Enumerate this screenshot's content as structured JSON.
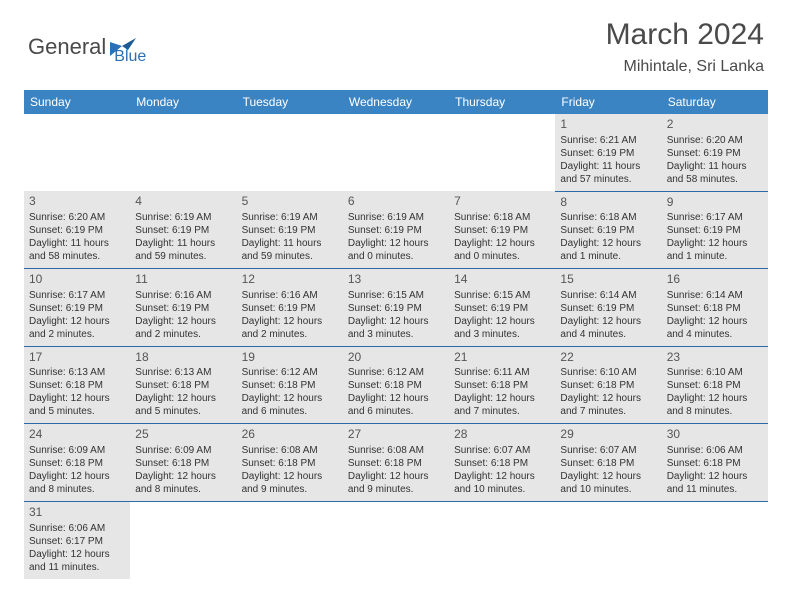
{
  "logo": {
    "general": "General",
    "blue": "Blue"
  },
  "title": "March 2024",
  "location": "Mihintale, Sri Lanka",
  "colors": {
    "header_bg": "#3b84c4",
    "header_text": "#ffffff",
    "cell_bg": "#e6e6e6",
    "row_border": "#2a6aa8",
    "logo_gray": "#4a4a4a",
    "logo_blue": "#2a70b8"
  },
  "weekdays": [
    "Sunday",
    "Monday",
    "Tuesday",
    "Wednesday",
    "Thursday",
    "Friday",
    "Saturday"
  ],
  "weeks": [
    [
      null,
      null,
      null,
      null,
      null,
      {
        "n": "1",
        "r": "Sunrise: 6:21 AM",
        "s": "Sunset: 6:19 PM",
        "d1": "Daylight: 11 hours",
        "d2": "and 57 minutes."
      },
      {
        "n": "2",
        "r": "Sunrise: 6:20 AM",
        "s": "Sunset: 6:19 PM",
        "d1": "Daylight: 11 hours",
        "d2": "and 58 minutes."
      }
    ],
    [
      {
        "n": "3",
        "r": "Sunrise: 6:20 AM",
        "s": "Sunset: 6:19 PM",
        "d1": "Daylight: 11 hours",
        "d2": "and 58 minutes."
      },
      {
        "n": "4",
        "r": "Sunrise: 6:19 AM",
        "s": "Sunset: 6:19 PM",
        "d1": "Daylight: 11 hours",
        "d2": "and 59 minutes."
      },
      {
        "n": "5",
        "r": "Sunrise: 6:19 AM",
        "s": "Sunset: 6:19 PM",
        "d1": "Daylight: 11 hours",
        "d2": "and 59 minutes."
      },
      {
        "n": "6",
        "r": "Sunrise: 6:19 AM",
        "s": "Sunset: 6:19 PM",
        "d1": "Daylight: 12 hours",
        "d2": "and 0 minutes."
      },
      {
        "n": "7",
        "r": "Sunrise: 6:18 AM",
        "s": "Sunset: 6:19 PM",
        "d1": "Daylight: 12 hours",
        "d2": "and 0 minutes."
      },
      {
        "n": "8",
        "r": "Sunrise: 6:18 AM",
        "s": "Sunset: 6:19 PM",
        "d1": "Daylight: 12 hours",
        "d2": "and 1 minute."
      },
      {
        "n": "9",
        "r": "Sunrise: 6:17 AM",
        "s": "Sunset: 6:19 PM",
        "d1": "Daylight: 12 hours",
        "d2": "and 1 minute."
      }
    ],
    [
      {
        "n": "10",
        "r": "Sunrise: 6:17 AM",
        "s": "Sunset: 6:19 PM",
        "d1": "Daylight: 12 hours",
        "d2": "and 2 minutes."
      },
      {
        "n": "11",
        "r": "Sunrise: 6:16 AM",
        "s": "Sunset: 6:19 PM",
        "d1": "Daylight: 12 hours",
        "d2": "and 2 minutes."
      },
      {
        "n": "12",
        "r": "Sunrise: 6:16 AM",
        "s": "Sunset: 6:19 PM",
        "d1": "Daylight: 12 hours",
        "d2": "and 2 minutes."
      },
      {
        "n": "13",
        "r": "Sunrise: 6:15 AM",
        "s": "Sunset: 6:19 PM",
        "d1": "Daylight: 12 hours",
        "d2": "and 3 minutes."
      },
      {
        "n": "14",
        "r": "Sunrise: 6:15 AM",
        "s": "Sunset: 6:19 PM",
        "d1": "Daylight: 12 hours",
        "d2": "and 3 minutes."
      },
      {
        "n": "15",
        "r": "Sunrise: 6:14 AM",
        "s": "Sunset: 6:19 PM",
        "d1": "Daylight: 12 hours",
        "d2": "and 4 minutes."
      },
      {
        "n": "16",
        "r": "Sunrise: 6:14 AM",
        "s": "Sunset: 6:18 PM",
        "d1": "Daylight: 12 hours",
        "d2": "and 4 minutes."
      }
    ],
    [
      {
        "n": "17",
        "r": "Sunrise: 6:13 AM",
        "s": "Sunset: 6:18 PM",
        "d1": "Daylight: 12 hours",
        "d2": "and 5 minutes."
      },
      {
        "n": "18",
        "r": "Sunrise: 6:13 AM",
        "s": "Sunset: 6:18 PM",
        "d1": "Daylight: 12 hours",
        "d2": "and 5 minutes."
      },
      {
        "n": "19",
        "r": "Sunrise: 6:12 AM",
        "s": "Sunset: 6:18 PM",
        "d1": "Daylight: 12 hours",
        "d2": "and 6 minutes."
      },
      {
        "n": "20",
        "r": "Sunrise: 6:12 AM",
        "s": "Sunset: 6:18 PM",
        "d1": "Daylight: 12 hours",
        "d2": "and 6 minutes."
      },
      {
        "n": "21",
        "r": "Sunrise: 6:11 AM",
        "s": "Sunset: 6:18 PM",
        "d1": "Daylight: 12 hours",
        "d2": "and 7 minutes."
      },
      {
        "n": "22",
        "r": "Sunrise: 6:10 AM",
        "s": "Sunset: 6:18 PM",
        "d1": "Daylight: 12 hours",
        "d2": "and 7 minutes."
      },
      {
        "n": "23",
        "r": "Sunrise: 6:10 AM",
        "s": "Sunset: 6:18 PM",
        "d1": "Daylight: 12 hours",
        "d2": "and 8 minutes."
      }
    ],
    [
      {
        "n": "24",
        "r": "Sunrise: 6:09 AM",
        "s": "Sunset: 6:18 PM",
        "d1": "Daylight: 12 hours",
        "d2": "and 8 minutes."
      },
      {
        "n": "25",
        "r": "Sunrise: 6:09 AM",
        "s": "Sunset: 6:18 PM",
        "d1": "Daylight: 12 hours",
        "d2": "and 8 minutes."
      },
      {
        "n": "26",
        "r": "Sunrise: 6:08 AM",
        "s": "Sunset: 6:18 PM",
        "d1": "Daylight: 12 hours",
        "d2": "and 9 minutes."
      },
      {
        "n": "27",
        "r": "Sunrise: 6:08 AM",
        "s": "Sunset: 6:18 PM",
        "d1": "Daylight: 12 hours",
        "d2": "and 9 minutes."
      },
      {
        "n": "28",
        "r": "Sunrise: 6:07 AM",
        "s": "Sunset: 6:18 PM",
        "d1": "Daylight: 12 hours",
        "d2": "and 10 minutes."
      },
      {
        "n": "29",
        "r": "Sunrise: 6:07 AM",
        "s": "Sunset: 6:18 PM",
        "d1": "Daylight: 12 hours",
        "d2": "and 10 minutes."
      },
      {
        "n": "30",
        "r": "Sunrise: 6:06 AM",
        "s": "Sunset: 6:18 PM",
        "d1": "Daylight: 12 hours",
        "d2": "and 11 minutes."
      }
    ],
    [
      {
        "n": "31",
        "r": "Sunrise: 6:06 AM",
        "s": "Sunset: 6:17 PM",
        "d1": "Daylight: 12 hours",
        "d2": "and 11 minutes."
      },
      null,
      null,
      null,
      null,
      null,
      null
    ]
  ]
}
